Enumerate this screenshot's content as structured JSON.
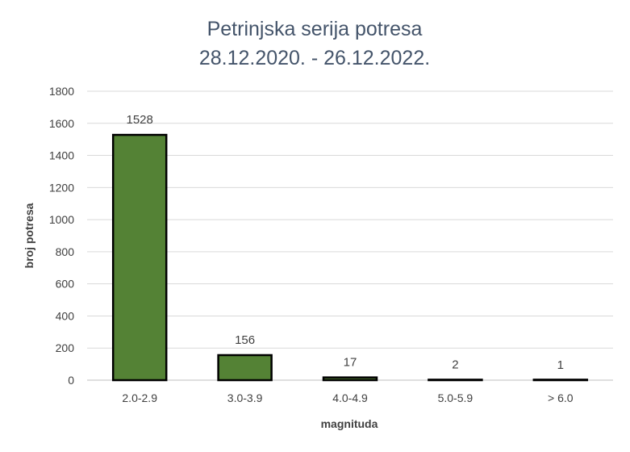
{
  "chart_data": {
    "type": "bar",
    "title_line1": "Petrinjska serija potresa",
    "title_line2": "28.12.2020. - 26.12.2022.",
    "xlabel": "magnituda",
    "ylabel": "broj potresa",
    "categories": [
      "2.0-2.9",
      "3.0-3.9",
      "4.0-4.9",
      "5.0-5.9",
      "> 6.0"
    ],
    "values": [
      1528,
      156,
      17,
      2,
      1
    ],
    "data_labels": [
      "1528",
      "156",
      "17",
      "2",
      "1"
    ],
    "ylim": [
      0,
      1800
    ],
    "yticks": [
      0,
      200,
      400,
      600,
      800,
      1000,
      1200,
      1400,
      1600,
      1800
    ],
    "grid": true,
    "legend": "none",
    "bar_color": "#548235",
    "bar_edge_color": "#000000"
  }
}
